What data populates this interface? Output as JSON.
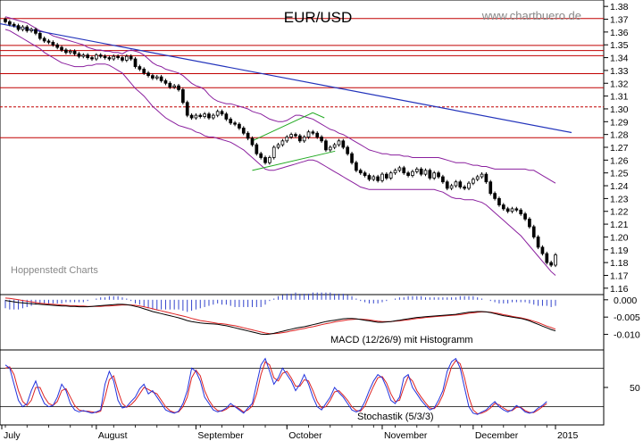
{
  "chart_data": {
    "type": "candlestick",
    "title": "EUR/USD",
    "watermark_right": "www.chartbuero.de",
    "watermark_left": "Hoppenstedt Charts",
    "price_axis": {
      "ticks": [
        1.38,
        1.37,
        1.36,
        1.35,
        1.34,
        1.33,
        1.32,
        1.31,
        1.3,
        1.29,
        1.28,
        1.27,
        1.26,
        1.25,
        1.24,
        1.23,
        1.22,
        1.21,
        1.2,
        1.19,
        1.18,
        1.17,
        1.16
      ],
      "ylim": [
        1.155,
        1.385
      ]
    },
    "months": [
      "July",
      "August",
      "September",
      "October",
      "November",
      "December",
      "2015"
    ],
    "horizontal_lines": [
      {
        "value": 1.3705,
        "style": "solid"
      },
      {
        "value": 1.3495,
        "style": "solid"
      },
      {
        "value": 1.3455,
        "style": "solid"
      },
      {
        "value": 1.3415,
        "style": "solid"
      },
      {
        "value": 1.3275,
        "style": "solid"
      },
      {
        "value": 1.3165,
        "style": "solid"
      },
      {
        "value": 1.3015,
        "style": "dashed"
      },
      {
        "value": 1.2775,
        "style": "solid"
      }
    ],
    "trendline": {
      "start": 1.3665,
      "end": 1.2815,
      "color": "#2233bb"
    },
    "channel": {
      "lower_start": 1.252,
      "lower_end": 1.267,
      "upper_start": 1.275,
      "upper_end": 1.297,
      "color": "#22aa22"
    },
    "close": [
      1.368,
      1.366,
      1.365,
      1.362,
      1.364,
      1.361,
      1.362,
      1.359,
      1.355,
      1.353,
      1.352,
      1.35,
      1.348,
      1.346,
      1.344,
      1.345,
      1.343,
      1.341,
      1.342,
      1.34,
      1.339,
      1.342,
      1.341,
      1.34,
      1.339,
      1.341,
      1.34,
      1.338,
      1.341,
      1.339,
      1.333,
      1.331,
      1.328,
      1.326,
      1.324,
      1.325,
      1.322,
      1.32,
      1.317,
      1.318,
      1.315,
      1.305,
      1.295,
      1.293,
      1.295,
      1.294,
      1.296,
      1.293,
      1.295,
      1.298,
      1.296,
      1.292,
      1.289,
      1.288,
      1.285,
      1.281,
      1.277,
      1.272,
      1.265,
      1.262,
      1.258,
      1.262,
      1.27,
      1.272,
      1.275,
      1.278,
      1.28,
      1.279,
      1.275,
      1.278,
      1.282,
      1.281,
      1.278,
      1.275,
      1.268,
      1.27,
      1.272,
      1.275,
      1.27,
      1.265,
      1.258,
      1.252,
      1.25,
      1.248,
      1.245,
      1.247,
      1.244,
      1.249,
      1.246,
      1.25,
      1.252,
      1.254,
      1.25,
      1.248,
      1.251,
      1.253,
      1.249,
      1.252,
      1.246,
      1.25,
      1.247,
      1.243,
      1.238,
      1.24,
      1.243,
      1.239,
      1.238,
      1.242,
      1.245,
      1.247,
      1.249,
      1.243,
      1.234,
      1.23,
      1.225,
      1.222,
      1.22,
      1.222,
      1.221,
      1.218,
      1.214,
      1.208,
      1.2,
      1.192,
      1.187,
      1.18,
      1.178,
      1.186
    ],
    "bollinger": {
      "upper": [
        1.372,
        1.371,
        1.37,
        1.369,
        1.368,
        1.367,
        1.365,
        1.363,
        1.361,
        1.36,
        1.359,
        1.357,
        1.356,
        1.355,
        1.354,
        1.353,
        1.352,
        1.351,
        1.35,
        1.348,
        1.347,
        1.346,
        1.346,
        1.345,
        1.345,
        1.344,
        1.344,
        1.343,
        1.345,
        1.346,
        1.345,
        1.344,
        1.342,
        1.339,
        1.336,
        1.334,
        1.333,
        1.331,
        1.33,
        1.329,
        1.328,
        1.326,
        1.323,
        1.32,
        1.318,
        1.317,
        1.315,
        1.311,
        1.308,
        1.306,
        1.305,
        1.304,
        1.304,
        1.303,
        1.302,
        1.301,
        1.3,
        1.298,
        1.297,
        1.296,
        1.294,
        1.292,
        1.291,
        1.29,
        1.29,
        1.291,
        1.293,
        1.295,
        1.295,
        1.294,
        1.293,
        1.292,
        1.29,
        1.288,
        1.286,
        1.284,
        1.283,
        1.281,
        1.28,
        1.278,
        1.276,
        1.274,
        1.272,
        1.27,
        1.268,
        1.267,
        1.266,
        1.265,
        1.265,
        1.264,
        1.264,
        1.264,
        1.263,
        1.263,
        1.262,
        1.262,
        1.262,
        1.262,
        1.262,
        1.262,
        1.262,
        1.261,
        1.26,
        1.259,
        1.258,
        1.258,
        1.258,
        1.257,
        1.256,
        1.256,
        1.255,
        1.255,
        1.254,
        1.253,
        1.253,
        1.253,
        1.253,
        1.253,
        1.253,
        1.253,
        1.253,
        1.252,
        1.252,
        1.25,
        1.248,
        1.246,
        1.244,
        1.242
      ],
      "lower": [
        1.362,
        1.361,
        1.359,
        1.357,
        1.355,
        1.353,
        1.351,
        1.349,
        1.347,
        1.344,
        1.342,
        1.34,
        1.338,
        1.336,
        1.335,
        1.334,
        1.333,
        1.333,
        1.333,
        1.334,
        1.334,
        1.335,
        1.335,
        1.335,
        1.334,
        1.332,
        1.33,
        1.328,
        1.324,
        1.32,
        1.316,
        1.313,
        1.31,
        1.306,
        1.302,
        1.299,
        1.296,
        1.293,
        1.291,
        1.289,
        1.287,
        1.286,
        1.285,
        1.284,
        1.282,
        1.281,
        1.279,
        1.278,
        1.278,
        1.277,
        1.276,
        1.275,
        1.274,
        1.272,
        1.27,
        1.268,
        1.265,
        1.262,
        1.259,
        1.256,
        1.253,
        1.252,
        1.252,
        1.253,
        1.254,
        1.255,
        1.256,
        1.257,
        1.258,
        1.259,
        1.26,
        1.26,
        1.259,
        1.257,
        1.255,
        1.253,
        1.251,
        1.249,
        1.247,
        1.245,
        1.243,
        1.241,
        1.239,
        1.238,
        1.237,
        1.237,
        1.237,
        1.237,
        1.237,
        1.237,
        1.237,
        1.237,
        1.237,
        1.237,
        1.237,
        1.237,
        1.237,
        1.237,
        1.237,
        1.237,
        1.236,
        1.235,
        1.233,
        1.231,
        1.23,
        1.23,
        1.229,
        1.229,
        1.229,
        1.228,
        1.227,
        1.225,
        1.222,
        1.219,
        1.216,
        1.213,
        1.21,
        1.207,
        1.204,
        1.201,
        1.197,
        1.193,
        1.189,
        1.185,
        1.181,
        1.177,
        1.173,
        1.17
      ]
    },
    "macd": {
      "label": "MACD (12/26/9) mit Histogramm",
      "ticks": [
        0.0,
        -0.005,
        -0.01
      ],
      "ylim": [
        -0.0145,
        0.0015
      ],
      "macd": [
        -0.0002,
        -0.0004,
        -0.0006,
        -0.0008,
        -0.0009,
        -0.001,
        -0.0011,
        -0.0012,
        -0.0013,
        -0.0014,
        -0.0015,
        -0.0016,
        -0.0017,
        -0.0018,
        -0.0018,
        -0.0019,
        -0.0019,
        -0.002,
        -0.002,
        -0.002,
        -0.0019,
        -0.0018,
        -0.0017,
        -0.0016,
        -0.0015,
        -0.0014,
        -0.0013,
        -0.0013,
        -0.0014,
        -0.0016,
        -0.0019,
        -0.0022,
        -0.0026,
        -0.003,
        -0.0034,
        -0.0037,
        -0.004,
        -0.0043,
        -0.0046,
        -0.0049,
        -0.0052,
        -0.0056,
        -0.006,
        -0.0063,
        -0.0065,
        -0.0067,
        -0.0068,
        -0.0069,
        -0.007,
        -0.0071,
        -0.0073,
        -0.0075,
        -0.0078,
        -0.0081,
        -0.0084,
        -0.0087,
        -0.009,
        -0.0093,
        -0.0096,
        -0.0099,
        -0.01,
        -0.0099,
        -0.0097,
        -0.0094,
        -0.0091,
        -0.0088,
        -0.0085,
        -0.0082,
        -0.008,
        -0.0078,
        -0.0075,
        -0.0072,
        -0.0069,
        -0.0066,
        -0.0063,
        -0.0061,
        -0.0059,
        -0.0057,
        -0.0055,
        -0.0054,
        -0.0054,
        -0.0055,
        -0.0057,
        -0.0059,
        -0.0061,
        -0.0063,
        -0.0065,
        -0.0065,
        -0.0064,
        -0.0063,
        -0.0061,
        -0.0059,
        -0.0057,
        -0.0055,
        -0.0053,
        -0.0051,
        -0.005,
        -0.0049,
        -0.0048,
        -0.0047,
        -0.0046,
        -0.0045,
        -0.0044,
        -0.0043,
        -0.0042,
        -0.004,
        -0.0038,
        -0.0036,
        -0.0035,
        -0.0034,
        -0.0034,
        -0.0035,
        -0.0037,
        -0.004,
        -0.0043,
        -0.0046,
        -0.0048,
        -0.005,
        -0.0052,
        -0.0054,
        -0.0057,
        -0.0061,
        -0.0066,
        -0.0071,
        -0.0076,
        -0.0081,
        -0.0086,
        -0.009
      ],
      "signal": [
        0.0005,
        0.0004,
        0.0002,
        0.0,
        -0.0002,
        -0.0004,
        -0.0006,
        -0.0008,
        -0.001,
        -0.0011,
        -0.0012,
        -0.0013,
        -0.0014,
        -0.0015,
        -0.0016,
        -0.0017,
        -0.0017,
        -0.0018,
        -0.0018,
        -0.0019,
        -0.0019,
        -0.0019,
        -0.0019,
        -0.0018,
        -0.0018,
        -0.0017,
        -0.0016,
        -0.0015,
        -0.0015,
        -0.0015,
        -0.0016,
        -0.0018,
        -0.002,
        -0.0023,
        -0.0026,
        -0.0029,
        -0.0032,
        -0.0035,
        -0.0038,
        -0.0041,
        -0.0044,
        -0.0047,
        -0.005,
        -0.0054,
        -0.0057,
        -0.006,
        -0.0062,
        -0.0064,
        -0.0066,
        -0.0068,
        -0.0069,
        -0.0071,
        -0.0073,
        -0.0075,
        -0.0078,
        -0.0081,
        -0.0084,
        -0.0087,
        -0.009,
        -0.0093,
        -0.0096,
        -0.0098,
        -0.0098,
        -0.0097,
        -0.0095,
        -0.0093,
        -0.009,
        -0.0088,
        -0.0085,
        -0.0083,
        -0.008,
        -0.0078,
        -0.0075,
        -0.0072,
        -0.0069,
        -0.0067,
        -0.0064,
        -0.0062,
        -0.006,
        -0.0058,
        -0.0057,
        -0.0056,
        -0.0056,
        -0.0057,
        -0.0058,
        -0.006,
        -0.0062,
        -0.0063,
        -0.0063,
        -0.0063,
        -0.0062,
        -0.0061,
        -0.0059,
        -0.0058,
        -0.0056,
        -0.0054,
        -0.0053,
        -0.0051,
        -0.005,
        -0.0049,
        -0.0048,
        -0.0047,
        -0.0046,
        -0.0045,
        -0.0044,
        -0.0043,
        -0.0041,
        -0.0039,
        -0.0038,
        -0.0036,
        -0.0035,
        -0.0035,
        -0.0036,
        -0.0038,
        -0.004,
        -0.0043,
        -0.0045,
        -0.0048,
        -0.005,
        -0.0052,
        -0.0055,
        -0.0058,
        -0.0062,
        -0.0066,
        -0.0071,
        -0.0076,
        -0.008,
        -0.0085
      ]
    },
    "stochastic": {
      "label": "Stochastik (5/3/3)",
      "ticks": [
        50
      ],
      "ylim": [
        0,
        100
      ],
      "levels": [
        80,
        20
      ],
      "k": [
        85,
        80,
        55,
        30,
        20,
        25,
        45,
        60,
        40,
        25,
        20,
        22,
        35,
        55,
        45,
        25,
        15,
        12,
        14,
        12,
        10,
        12,
        15,
        55,
        75,
        60,
        30,
        18,
        20,
        28,
        35,
        48,
        55,
        40,
        45,
        35,
        25,
        15,
        12,
        10,
        13,
        25,
        45,
        80,
        75,
        60,
        35,
        25,
        15,
        12,
        14,
        18,
        25,
        20,
        15,
        10,
        18,
        25,
        55,
        85,
        95,
        75,
        55,
        65,
        80,
        70,
        60,
        45,
        55,
        70,
        55,
        35,
        20,
        15,
        25,
        35,
        50,
        42,
        35,
        25,
        15,
        12,
        15,
        28,
        45,
        60,
        70,
        65,
        50,
        30,
        25,
        35,
        65,
        70,
        50,
        40,
        30,
        22,
        15,
        18,
        30,
        45,
        75,
        90,
        95,
        80,
        50,
        20,
        10,
        8,
        12,
        15,
        22,
        28,
        20,
        15,
        12,
        15,
        22,
        18,
        12,
        10,
        12,
        18,
        22,
        28
      ],
      "d": [
        80,
        82,
        70,
        45,
        28,
        22,
        30,
        50,
        50,
        35,
        25,
        22,
        28,
        45,
        48,
        35,
        22,
        15,
        13,
        13,
        12,
        11,
        13,
        35,
        62,
        68,
        45,
        25,
        19,
        23,
        30,
        40,
        50,
        47,
        43,
        40,
        30,
        20,
        14,
        11,
        12,
        20,
        35,
        65,
        77,
        68,
        45,
        30,
        20,
        14,
        13,
        16,
        21,
        21,
        17,
        12,
        15,
        21,
        40,
        70,
        90,
        85,
        65,
        60,
        72,
        75,
        65,
        52,
        52,
        62,
        60,
        45,
        28,
        18,
        20,
        30,
        43,
        45,
        38,
        30,
        20,
        14,
        13,
        21,
        37,
        52,
        65,
        67,
        57,
        40,
        28,
        30,
        50,
        67,
        60,
        45,
        35,
        26,
        18,
        17,
        24,
        38,
        60,
        82,
        92,
        87,
        65,
        35,
        15,
        9,
        10,
        13,
        18,
        25,
        23,
        18,
        14,
        14,
        19,
        19,
        14,
        11,
        11,
        15,
        20,
        25
      ]
    }
  }
}
